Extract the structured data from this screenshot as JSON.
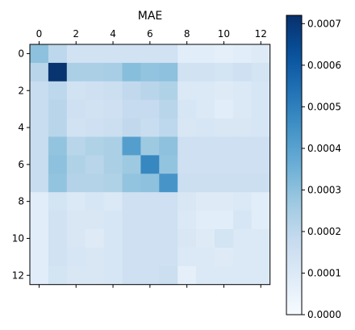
{
  "chart_data": {
    "type": "heatmap",
    "title": "MAE",
    "xlabel": "",
    "ylabel": "",
    "x_ticks": [
      "0",
      "2",
      "4",
      "6",
      "8",
      "10",
      "12"
    ],
    "y_ticks": [
      "0",
      "2",
      "4",
      "6",
      "8",
      "10",
      "12"
    ],
    "rows": 13,
    "cols": 13,
    "matrix": [
      [
        0.0003,
        0.0002,
        0.00014,
        0.00014,
        0.00014,
        0.00014,
        0.00014,
        0.00014,
        8e-05,
        8e-05,
        7e-05,
        8e-05,
        9e-05
      ],
      [
        0.00021,
        0.00071,
        0.00024,
        0.00024,
        0.00025,
        0.00031,
        0.00029,
        0.0003,
        0.00014,
        0.00014,
        0.00013,
        0.00015,
        0.00013
      ],
      [
        0.00017,
        0.0002,
        0.00014,
        0.00015,
        0.00016,
        0.00019,
        0.00021,
        0.00023,
        0.0001,
        0.0001,
        9e-05,
        0.0001,
        0.00012
      ],
      [
        0.00017,
        0.00021,
        0.00015,
        0.00014,
        0.00015,
        0.00018,
        0.00018,
        0.00021,
        0.00012,
        0.0001,
        8e-05,
        0.0001,
        0.00012
      ],
      [
        0.00017,
        0.00021,
        0.00014,
        0.00015,
        0.00016,
        0.00019,
        0.00017,
        0.0002,
        0.00011,
        0.00012,
        0.00011,
        0.00011,
        0.00012
      ],
      [
        0.00017,
        0.00029,
        0.00021,
        0.00023,
        0.00024,
        0.00041,
        0.00027,
        0.0003,
        0.00015,
        0.00015,
        0.00015,
        0.00015,
        0.00015
      ],
      [
        0.00017,
        0.0003,
        0.00023,
        0.00021,
        0.00024,
        0.00027,
        0.00048,
        0.00029,
        0.00015,
        0.00015,
        0.00015,
        0.00015,
        0.00015
      ],
      [
        0.00017,
        0.00029,
        0.00022,
        0.00022,
        0.00023,
        0.00029,
        0.0003,
        0.00044,
        0.00016,
        0.00016,
        0.00016,
        0.00016,
        0.00016
      ],
      [
        8e-05,
        0.00013,
        0.0001,
        0.00012,
        0.0001,
        0.00015,
        0.00015,
        0.00015,
        0.00011,
        9e-05,
        9e-05,
        0.0001,
        8e-05
      ],
      [
        8e-05,
        0.00014,
        0.00011,
        0.00011,
        0.00012,
        0.00015,
        0.00015,
        0.00015,
        0.0001,
        8e-05,
        8e-05,
        0.00012,
        8e-05
      ],
      [
        8e-05,
        0.00014,
        0.00011,
        9e-05,
        0.00012,
        0.00015,
        0.00015,
        0.00015,
        0.00011,
        9e-05,
        0.00013,
        0.0001,
        0.0001
      ],
      [
        8e-05,
        0.00014,
        0.00012,
        0.00011,
        0.00012,
        0.00015,
        0.00015,
        0.00015,
        0.0001,
        0.0001,
        9e-05,
        0.0001,
        0.0001
      ],
      [
        8e-05,
        0.00013,
        0.00011,
        0.00011,
        0.00012,
        0.00015,
        0.00015,
        0.00016,
        7e-05,
        0.0001,
        0.0001,
        0.0001,
        0.0001
      ]
    ],
    "colormap": "Blues",
    "vmin": 0.0,
    "vmax": 0.00072,
    "colorbar_ticks": [
      {
        "value": 0.0,
        "label": "0.0000"
      },
      {
        "value": 0.0001,
        "label": "0.0001"
      },
      {
        "value": 0.0002,
        "label": "0.0002"
      },
      {
        "value": 0.0003,
        "label": "0.0003"
      },
      {
        "value": 0.0004,
        "label": "0.0004"
      },
      {
        "value": 0.0005,
        "label": "0.0005"
      },
      {
        "value": 0.0006,
        "label": "0.0006"
      },
      {
        "value": 0.0007,
        "label": "0.0007"
      }
    ],
    "colorbar_placement": "right",
    "grid": false
  }
}
